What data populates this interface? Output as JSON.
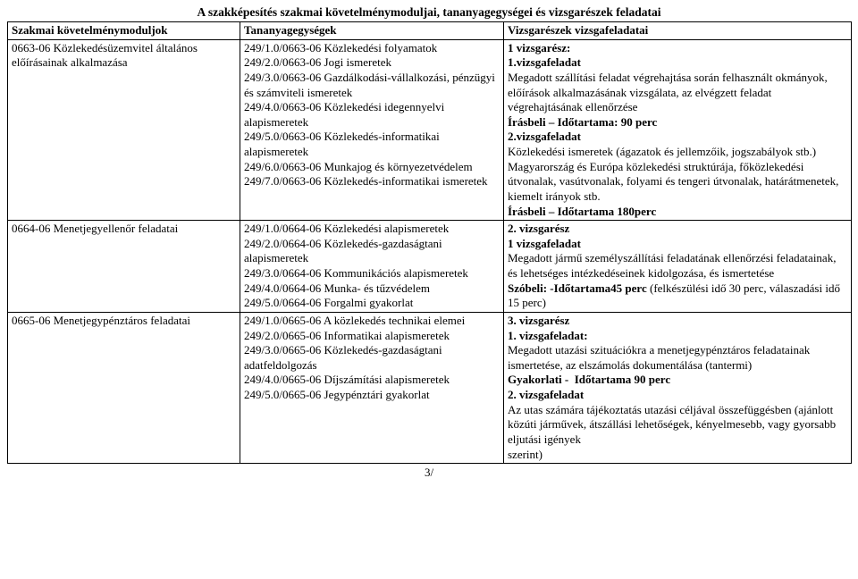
{
  "title": "A szakképesítés szakmai követelménymoduljai, tananyagegységei és vizsgarészek feladatai",
  "headers": [
    "Szakmai követelménymoduljok",
    "Tananyagegységek",
    "Vizsgarészek vizsgafeladatai"
  ],
  "rows": [
    {
      "c1": "0663-06 Közlekedésüzemvitel általános előírásainak alkalmazása",
      "c2": "249/1.0/0663-06 Közlekedési folyamatok\n249/2.0/0663-06 Jogi ismeretek\n249/3.0/0663-06 Gazdálkodási-vállalkozási, pénzügyi és számviteli ismeretek\n249/4.0/0663-06 Közlekedési idegennyelvi alapismeretek\n249/5.0/0663-06 Közlekedés-informatikai alapismeretek\n249/6.0/0663-06 Munkajog és környezetvédelem\n249/7.0/0663-06 Közlekedés-informatikai ismeretek",
      "c3": "1 vizsgarész:\n1.vizsgafeladat\nMegadott szállítási feladat végrehajtása során felhasznált okmányok, előírások alkalmazásának vizsgálata, az elvégzett feladat végrehajtásának ellenőrzése\nÍrásbeli – Időtartama: 90 perc\n2.vizsgafeladat\nKözlekedési ismeretek (ágazatok és jellemzőik, jogszabályok stb.) Magyarország és Európa közlekedési struktúrája, főközlekedési útvonalak, vasútvonalak, folyami és tengeri útvonalak, határátmenetek, kiemelt irányok stb.\nÍrásbeli – Időtartama 180perc"
    },
    {
      "c1": "0664-06 Menetjegyellenőr feladatai",
      "c2": "249/1.0/0664-06 Közlekedési alapismeretek\n249/2.0/0664-06 Közlekedés-gazdaságtani alapismeretek\n249/3.0/0664-06 Kommunikációs alapismeretek\n249/4.0/0664-06 Munka- és tűzvédelem\n249/5.0/0664-06 Forgalmi gyakorlat",
      "c3": "2. vizsgarész\n1 vizsgafeladat\nMegadott jármű személyszállítási feladatának ellenőrzési feladatainak, és lehetséges intézkedéseinek kidolgozása, és ismertetése\nSzóbeli: -Időtartama45 perc (felkészülési idő 30 perc, válaszadási idő 15 perc)"
    },
    {
      "c1": "0665-06 Menetjegypénztáros feladatai",
      "c2": "249/1.0/0665-06 A közlekedés technikai elemei\n249/2.0/0665-06 Informatikai alapismeretek\n249/3.0/0665-06 Közlekedés-gazdaságtani adatfeldolgozás\n249/4.0/0665-06 Díjszámítási alapismeretek\n249/5.0/0665-06 Jegypénztári gyakorlat",
      "c3": "3. vizsgarész\n1. vizsgafeladat:\nMegadott utazási szituációkra a menetjegypénztáros feladatainak ismertetése, az elszámolás dokumentálása (tantermi)\nGyakorlati -  Időtartama 90 perc\n2. vizsgafeladat\nAz utas számára tájékoztatás utazási céljával összefüggésben (ajánlott közúti járművek, átszállási lehetőségek, kényelmesebb, vagy gyorsabb eljutási igények\nszerint)"
    }
  ],
  "pageNumber": "3/"
}
